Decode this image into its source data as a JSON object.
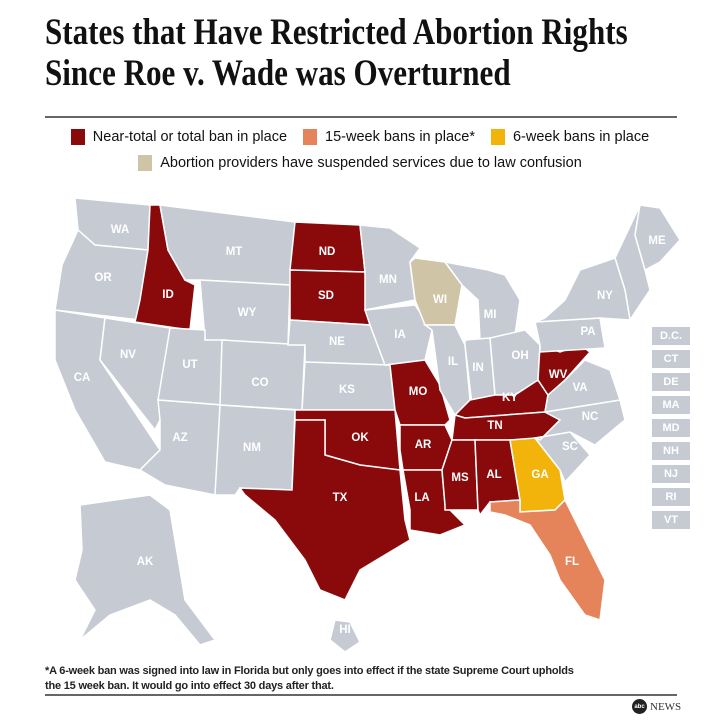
{
  "title": {
    "line1": "States that Have Restricted Abortion Rights",
    "line2": "Since Roe v. Wade was Overturned"
  },
  "legend": [
    {
      "key": "total",
      "label": "Near-total or total  ban in place",
      "color": "#8a0a0c"
    },
    {
      "key": "w15",
      "label": "15-week bans in place*",
      "color": "#e5835a"
    },
    {
      "key": "w6",
      "label": "6-week bans in place",
      "color": "#f2b40a"
    },
    {
      "key": "suspended",
      "label": "Abortion providers have suspended services due to law confusion",
      "color": "#cfc4a6"
    }
  ],
  "default_color": "#c5cad3",
  "states": [
    {
      "abbr": "WA",
      "status": "none"
    },
    {
      "abbr": "OR",
      "status": "none"
    },
    {
      "abbr": "CA",
      "status": "none"
    },
    {
      "abbr": "ID",
      "status": "total"
    },
    {
      "abbr": "NV",
      "status": "none"
    },
    {
      "abbr": "MT",
      "status": "none"
    },
    {
      "abbr": "WY",
      "status": "none"
    },
    {
      "abbr": "UT",
      "status": "none"
    },
    {
      "abbr": "AZ",
      "status": "none"
    },
    {
      "abbr": "CO",
      "status": "none"
    },
    {
      "abbr": "NM",
      "status": "none"
    },
    {
      "abbr": "ND",
      "status": "total"
    },
    {
      "abbr": "SD",
      "status": "total"
    },
    {
      "abbr": "NE",
      "status": "none"
    },
    {
      "abbr": "KS",
      "status": "none"
    },
    {
      "abbr": "OK",
      "status": "total"
    },
    {
      "abbr": "TX",
      "status": "total"
    },
    {
      "abbr": "MN",
      "status": "none"
    },
    {
      "abbr": "IA",
      "status": "none"
    },
    {
      "abbr": "MO",
      "status": "total"
    },
    {
      "abbr": "AR",
      "status": "total"
    },
    {
      "abbr": "LA",
      "status": "total"
    },
    {
      "abbr": "WI",
      "status": "suspended"
    },
    {
      "abbr": "IL",
      "status": "none"
    },
    {
      "abbr": "MI",
      "status": "none"
    },
    {
      "abbr": "IN",
      "status": "none"
    },
    {
      "abbr": "OH",
      "status": "none"
    },
    {
      "abbr": "KY",
      "status": "total"
    },
    {
      "abbr": "TN",
      "status": "total"
    },
    {
      "abbr": "MS",
      "status": "total"
    },
    {
      "abbr": "AL",
      "status": "total"
    },
    {
      "abbr": "GA",
      "status": "w6"
    },
    {
      "abbr": "FL",
      "status": "w15"
    },
    {
      "abbr": "SC",
      "status": "none"
    },
    {
      "abbr": "NC",
      "status": "none"
    },
    {
      "abbr": "VA",
      "status": "none"
    },
    {
      "abbr": "WV",
      "status": "total"
    },
    {
      "abbr": "PA",
      "status": "none"
    },
    {
      "abbr": "NY",
      "status": "none"
    },
    {
      "abbr": "ME",
      "status": "none"
    },
    {
      "abbr": "AK",
      "status": "none"
    },
    {
      "abbr": "HI",
      "status": "none"
    }
  ],
  "small_states": [
    "D.C.",
    "CT",
    "DE",
    "MA",
    "MD",
    "NH",
    "NJ",
    "RI",
    "VT"
  ],
  "footnote": {
    "line1": "*A 6-week ban was signed into law in Florida but only goes into effect if the state Supreme Court upholds",
    "line2": "the 15 week ban.  It would go into effect 30 days after that."
  },
  "logo": {
    "mark": "abc",
    "text": "NEWS"
  }
}
